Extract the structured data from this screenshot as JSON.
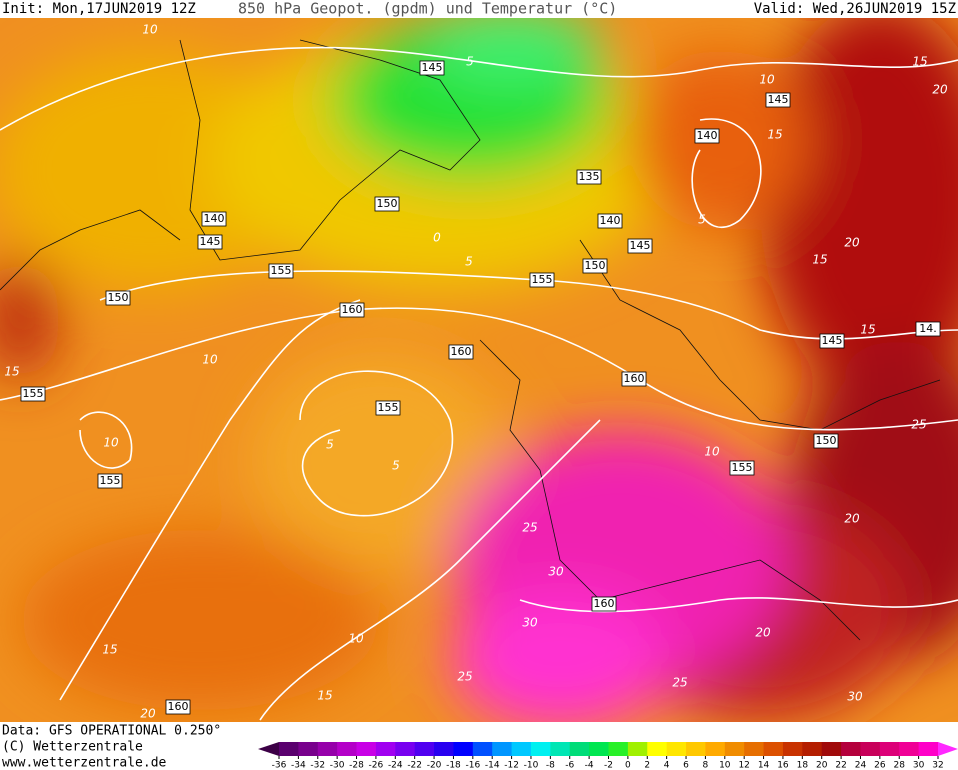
{
  "header": {
    "init": "Init: Mon,17JUN2019 12Z",
    "title": "850 hPa Geopot. (gpdm) und Temperatur (°C)",
    "valid": "Valid: Wed,26JUN2019 15Z"
  },
  "footer": {
    "lines": [
      "Data: GFS OPERATIONAL 0.250°",
      "(C) Wetterzentrale",
      "www.wetterzentrale.de"
    ]
  },
  "map": {
    "geopotential_labels": [
      "145",
      "145",
      "140",
      "135",
      "140",
      "145",
      "150",
      "140",
      "145",
      "150",
      "155",
      "155",
      "150",
      "160",
      "160",
      "14.",
      "145",
      "160",
      "155",
      "155",
      "155",
      "150",
      "155",
      "160",
      "160"
    ],
    "temperature_labels": [
      "10",
      "15",
      "20",
      "5",
      "10",
      "15",
      "5",
      "20",
      "15",
      "15",
      "0",
      "5",
      "10",
      "10",
      "15",
      "5",
      "5",
      "10",
      "15",
      "15",
      "20",
      "25",
      "30",
      "30",
      "25",
      "20",
      "25",
      "30",
      "25",
      "20",
      "10"
    ]
  },
  "colorbar": {
    "ticks": [
      -36,
      -34,
      -32,
      -30,
      -28,
      -26,
      -24,
      -22,
      -20,
      -18,
      -16,
      -14,
      -12,
      -10,
      -8,
      -6,
      -4,
      -2,
      0,
      2,
      4,
      6,
      8,
      10,
      12,
      14,
      16,
      18,
      20,
      22,
      24,
      26,
      28,
      30,
      32
    ],
    "colors": [
      "#3c0046",
      "#5a006e",
      "#78008c",
      "#9600aa",
      "#b400c8",
      "#c800e6",
      "#a000f0",
      "#7800f0",
      "#5000f0",
      "#2800f0",
      "#0000ff",
      "#0050ff",
      "#0096ff",
      "#00c8ff",
      "#00f0f0",
      "#00e6b4",
      "#00dc78",
      "#00e650",
      "#28f028",
      "#a0f000",
      "#ffff00",
      "#ffe600",
      "#ffc800",
      "#ffaa00",
      "#f08c00",
      "#e66e00",
      "#dc5000",
      "#c83200",
      "#b41e00",
      "#a00a0a",
      "#b4003c",
      "#c8005a",
      "#dc0078",
      "#f00096",
      "#ff00c8",
      "#ff28ff"
    ]
  }
}
